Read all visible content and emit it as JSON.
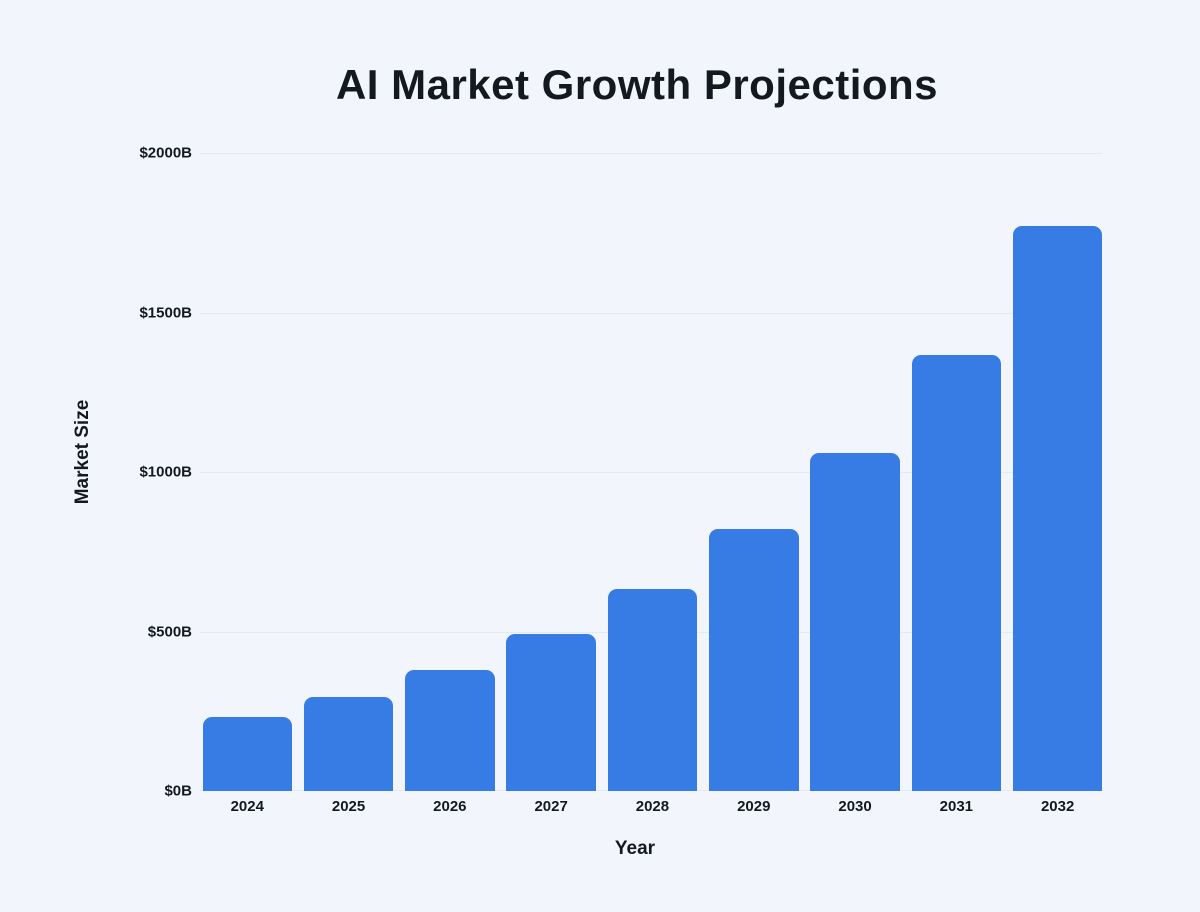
{
  "page": {
    "background_color": "#F2F6FC"
  },
  "chart_data": {
    "type": "bar",
    "title": "AI Market Growth Projections",
    "xlabel": "Year",
    "ylabel": "Market Size",
    "categories": [
      "2024",
      "2025",
      "2026",
      "2027",
      "2028",
      "2029",
      "2030",
      "2031",
      "2032"
    ],
    "values": [
      233,
      294,
      380,
      491,
      634,
      820,
      1059,
      1368,
      1772
    ],
    "ylim": [
      0,
      2000
    ],
    "yticks": [
      {
        "value": 2000,
        "label": "$2000B"
      },
      {
        "value": 1500,
        "label": "$1500B"
      },
      {
        "value": 1000,
        "label": "$1000B"
      },
      {
        "value": 500,
        "label": "$500B"
      },
      {
        "value": 0,
        "label": "$0B"
      }
    ],
    "grid": true,
    "legend": "none",
    "bar_color": "#377BE5",
    "gridline_color": "#E4EAF2",
    "text_color": "#14181F"
  }
}
